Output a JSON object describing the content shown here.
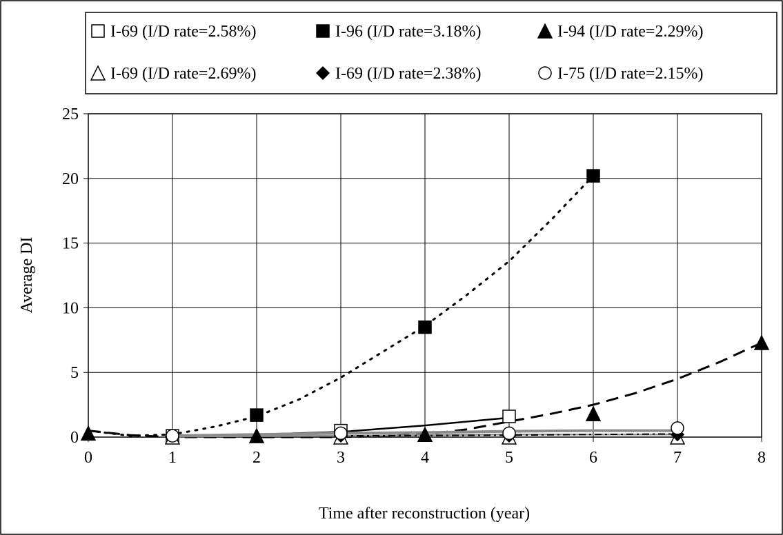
{
  "chart_data": {
    "type": "scatter",
    "xlabel": "Time after reconstruction (year)",
    "ylabel": "Average DI",
    "xlim": [
      0,
      8
    ],
    "ylim": [
      0,
      25
    ],
    "xticks": [
      0,
      1,
      2,
      3,
      4,
      5,
      6,
      7,
      8
    ],
    "yticks": [
      0,
      5,
      10,
      15,
      20,
      25
    ],
    "grid": "vertical and horizontal",
    "legend_position": "top",
    "series": [
      {
        "name": "I-69 (I/D rate=2.58%)",
        "marker": "open-square",
        "line": "solid",
        "color": "#000000",
        "points": [
          [
            1,
            0.1
          ],
          [
            3,
            0.5
          ],
          [
            5,
            1.6
          ]
        ],
        "trend": [
          [
            1,
            0.05
          ],
          [
            2,
            0.2
          ],
          [
            3,
            0.4
          ],
          [
            4,
            0.9
          ],
          [
            5,
            1.5
          ]
        ]
      },
      {
        "name": "I-96 (I/D rate=3.18%)",
        "marker": "filled-square",
        "line": "dotted",
        "color": "#000000",
        "points": [
          [
            2,
            1.7
          ],
          [
            4,
            8.5
          ],
          [
            6,
            20.2
          ]
        ],
        "trend": [
          [
            0,
            0.5
          ],
          [
            0.5,
            0.1
          ],
          [
            1,
            0.2
          ],
          [
            1.5,
            0.8
          ],
          [
            2,
            1.6
          ],
          [
            2.5,
            2.9
          ],
          [
            3,
            4.6
          ],
          [
            3.5,
            6.6
          ],
          [
            4,
            8.6
          ],
          [
            4.5,
            11.0
          ],
          [
            5,
            13.6
          ],
          [
            5.5,
            16.8
          ],
          [
            6,
            20.2
          ]
        ]
      },
      {
        "name": "I-94 (I/D rate=2.29%)",
        "marker": "filled-triangle",
        "line": "dashed",
        "color": "#000000",
        "points": [
          [
            0,
            0.3
          ],
          [
            2,
            0.1
          ],
          [
            4,
            0.2
          ],
          [
            6,
            1.8
          ],
          [
            8,
            7.3
          ]
        ],
        "trend": [
          [
            0,
            0.5
          ],
          [
            0.5,
            0.15
          ],
          [
            1,
            0.0
          ],
          [
            2,
            0.0
          ],
          [
            3,
            0.0
          ],
          [
            4,
            0.2
          ],
          [
            4.5,
            0.6
          ],
          [
            5,
            1.2
          ],
          [
            5.5,
            1.8
          ],
          [
            6,
            2.5
          ],
          [
            6.5,
            3.4
          ],
          [
            7,
            4.5
          ],
          [
            7.5,
            5.8
          ],
          [
            8,
            7.3
          ]
        ]
      },
      {
        "name": "I-69 (I/D rate=2.69%)",
        "marker": "open-triangle",
        "line": "solid-gray",
        "color": "#808080",
        "points": [
          [
            1,
            0.0
          ],
          [
            3,
            0.0
          ],
          [
            5,
            0.0
          ],
          [
            7,
            0.0
          ]
        ],
        "trend": [
          [
            1,
            0.05
          ],
          [
            3,
            0.1
          ],
          [
            5,
            0.2
          ],
          [
            7,
            0.2
          ]
        ]
      },
      {
        "name": "I-69 (I/D rate=2.38%)",
        "marker": "filled-diamond",
        "line": "dash-dot",
        "color": "#000000",
        "points": [
          [
            3,
            0.1
          ],
          [
            5,
            0.1
          ],
          [
            7,
            0.2
          ]
        ],
        "trend": [
          [
            3,
            0.1
          ],
          [
            5,
            0.15
          ],
          [
            7,
            0.25
          ]
        ]
      },
      {
        "name": "I-75 (I/D rate=2.15%)",
        "marker": "open-circle",
        "line": "solid-gray-thick",
        "color": "#8c8c8c",
        "points": [
          [
            1,
            0.1
          ],
          [
            3,
            0.3
          ],
          [
            5,
            0.3
          ],
          [
            7,
            0.7
          ]
        ],
        "trend": [
          [
            1,
            0.1
          ],
          [
            2,
            0.2
          ],
          [
            3,
            0.3
          ],
          [
            4,
            0.35
          ],
          [
            5,
            0.45
          ],
          [
            6,
            0.5
          ],
          [
            7,
            0.5
          ]
        ]
      }
    ]
  }
}
